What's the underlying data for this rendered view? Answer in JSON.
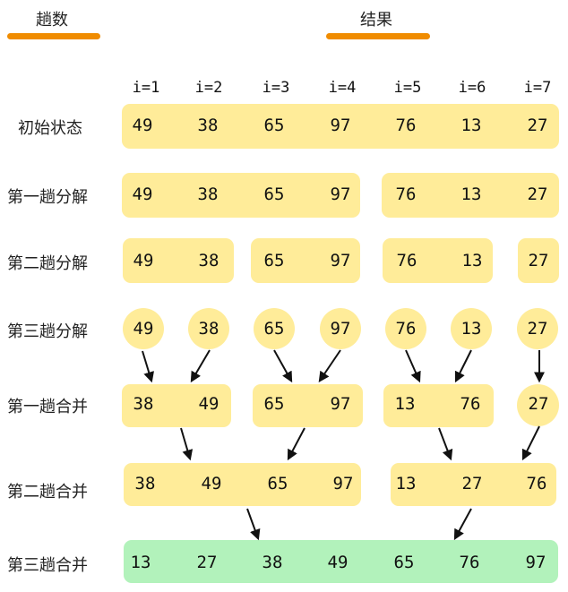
{
  "header": {
    "left": "趟数",
    "right": "结果"
  },
  "indices": [
    "i=1",
    "i=2",
    "i=3",
    "i=4",
    "i=5",
    "i=6",
    "i=7"
  ],
  "rows": [
    {
      "label": "初始状态",
      "values": [
        "49",
        "38",
        "65",
        "97",
        "76",
        "13",
        "27"
      ]
    },
    {
      "label": "第一趟分解",
      "values": [
        "49",
        "38",
        "65",
        "97",
        "76",
        "13",
        "27"
      ]
    },
    {
      "label": "第二趟分解",
      "values": [
        "49",
        "38",
        "65",
        "97",
        "76",
        "13",
        "27"
      ]
    },
    {
      "label": "第三趟分解",
      "values": [
        "49",
        "38",
        "65",
        "97",
        "76",
        "13",
        "27"
      ]
    },
    {
      "label": "第一趟合并",
      "values": [
        "38",
        "49",
        "65",
        "97",
        "13",
        "76",
        "27"
      ]
    },
    {
      "label": "第二趟合并",
      "values": [
        "38",
        "49",
        "65",
        "97",
        "13",
        "27",
        "76"
      ]
    },
    {
      "label": "第三趟合并",
      "values": [
        "13",
        "27",
        "38",
        "49",
        "65",
        "76",
        "97"
      ]
    }
  ],
  "colors": {
    "accent": "#f08c00",
    "box": "#ffec99",
    "final": "#b2f2bb"
  }
}
